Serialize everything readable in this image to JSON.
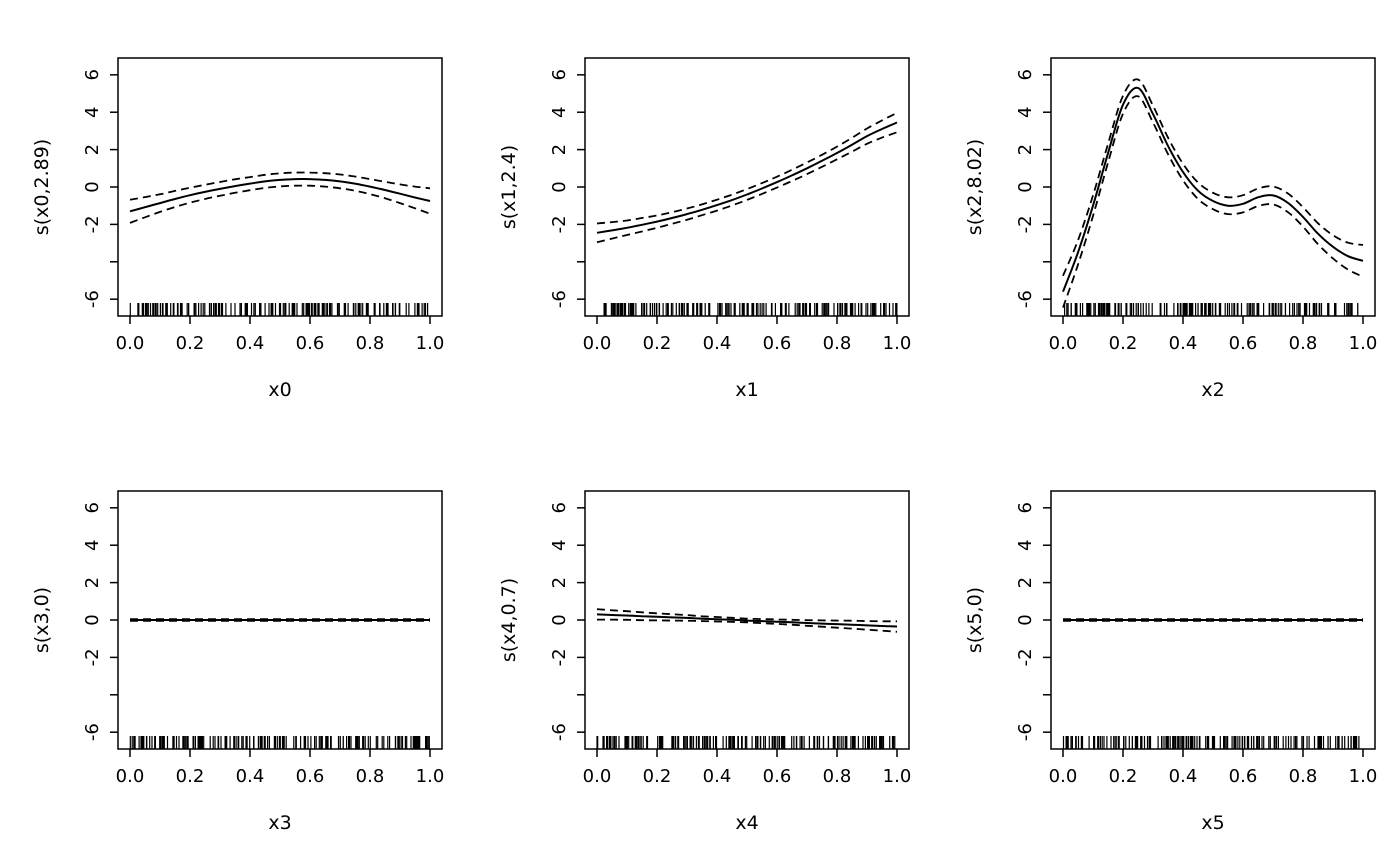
{
  "figure": {
    "description": "GAM smooth term plots, 2x3 grid (mgcv plot.gam style)",
    "background": "#ffffff",
    "line_color": "#000000"
  },
  "chart_data": [
    {
      "type": "line",
      "ylabel": "s(x0,2.89)",
      "xlabel": "x0",
      "xlim": [
        0,
        1
      ],
      "ylim": [
        -6.9,
        6.9
      ],
      "x_ticks": [
        0.0,
        0.2,
        0.4,
        0.6,
        0.8,
        1.0
      ],
      "x_tick_labels": [
        "0.0",
        "0.2",
        "0.4",
        "0.6",
        "0.8",
        "1.0"
      ],
      "y_ticks": [
        -6,
        -4,
        -2,
        0,
        2,
        4,
        6
      ],
      "y_tick_labels": [
        "-6",
        "",
        "-2",
        "0",
        "2",
        "4",
        "6"
      ],
      "x": [
        0,
        0.05,
        0.1,
        0.15,
        0.2,
        0.25,
        0.3,
        0.35,
        0.4,
        0.45,
        0.5,
        0.55,
        0.6,
        0.65,
        0.7,
        0.75,
        0.8,
        0.85,
        0.9,
        0.95,
        1
      ],
      "fit": [
        -1.3,
        -1.08,
        -0.86,
        -0.64,
        -0.44,
        -0.26,
        -0.1,
        0.05,
        0.18,
        0.3,
        0.38,
        0.42,
        0.42,
        0.38,
        0.3,
        0.18,
        0.02,
        -0.16,
        -0.36,
        -0.56,
        -0.75
      ],
      "se": [
        0.62,
        0.54,
        0.47,
        0.43,
        0.4,
        0.38,
        0.37,
        0.36,
        0.35,
        0.35,
        0.35,
        0.35,
        0.35,
        0.36,
        0.37,
        0.38,
        0.4,
        0.44,
        0.5,
        0.58,
        0.68
      ],
      "rug_count": 170,
      "rug_seed": 101
    },
    {
      "type": "line",
      "ylabel": "s(x1,2.4)",
      "xlabel": "x1",
      "xlim": [
        0,
        1
      ],
      "ylim": [
        -6.9,
        6.9
      ],
      "x_ticks": [
        0.0,
        0.2,
        0.4,
        0.6,
        0.8,
        1.0
      ],
      "x_tick_labels": [
        "0.0",
        "0.2",
        "0.4",
        "0.6",
        "0.8",
        "1.0"
      ],
      "y_ticks": [
        -6,
        -4,
        -2,
        0,
        2,
        4,
        6
      ],
      "y_tick_labels": [
        "-6",
        "",
        "-2",
        "0",
        "2",
        "4",
        "6"
      ],
      "x": [
        0,
        0.05,
        0.1,
        0.15,
        0.2,
        0.25,
        0.3,
        0.35,
        0.4,
        0.45,
        0.5,
        0.55,
        0.6,
        0.65,
        0.7,
        0.75,
        0.8,
        0.85,
        0.9,
        0.95,
        1
      ],
      "fit": [
        -2.45,
        -2.32,
        -2.18,
        -2.02,
        -1.85,
        -1.66,
        -1.45,
        -1.22,
        -0.97,
        -0.7,
        -0.4,
        -0.08,
        0.26,
        0.62,
        1.0,
        1.4,
        1.82,
        2.26,
        2.72,
        3.1,
        3.45
      ],
      "se": [
        0.5,
        0.44,
        0.39,
        0.36,
        0.33,
        0.31,
        0.3,
        0.29,
        0.29,
        0.29,
        0.29,
        0.29,
        0.29,
        0.3,
        0.31,
        0.32,
        0.34,
        0.37,
        0.41,
        0.46,
        0.52
      ],
      "rug_count": 170,
      "rug_seed": 102
    },
    {
      "type": "line",
      "ylabel": "s(x2,8.02)",
      "xlabel": "x2",
      "xlim": [
        0,
        1
      ],
      "ylim": [
        -6.9,
        6.9
      ],
      "x_ticks": [
        0.0,
        0.2,
        0.4,
        0.6,
        0.8,
        1.0
      ],
      "x_tick_labels": [
        "0.0",
        "0.2",
        "0.4",
        "0.6",
        "0.8",
        "1.0"
      ],
      "y_ticks": [
        -6,
        -4,
        -2,
        0,
        2,
        4,
        6
      ],
      "y_tick_labels": [
        "-6",
        "",
        "-2",
        "0",
        "2",
        "4",
        "6"
      ],
      "x": [
        0,
        0.05,
        0.1,
        0.15,
        0.2,
        0.25,
        0.3,
        0.35,
        0.4,
        0.45,
        0.5,
        0.55,
        0.6,
        0.65,
        0.7,
        0.75,
        0.8,
        0.85,
        0.9,
        0.95,
        1
      ],
      "fit": [
        -5.6,
        -3.5,
        -1.0,
        1.8,
        4.4,
        5.3,
        3.9,
        2.2,
        0.8,
        -0.2,
        -0.75,
        -1.0,
        -0.9,
        -0.55,
        -0.45,
        -0.85,
        -1.6,
        -2.5,
        -3.2,
        -3.7,
        -3.95
      ],
      "se": [
        0.85,
        0.65,
        0.55,
        0.5,
        0.48,
        0.45,
        0.45,
        0.44,
        0.44,
        0.44,
        0.44,
        0.45,
        0.46,
        0.47,
        0.48,
        0.5,
        0.52,
        0.56,
        0.62,
        0.72,
        0.85
      ],
      "rug_count": 170,
      "rug_seed": 103
    },
    {
      "type": "line",
      "ylabel": "s(x3,0)",
      "xlabel": "x3",
      "xlim": [
        0,
        1
      ],
      "ylim": [
        -6.9,
        6.9
      ],
      "x_ticks": [
        0.0,
        0.2,
        0.4,
        0.6,
        0.8,
        1.0
      ],
      "x_tick_labels": [
        "0.0",
        "0.2",
        "0.4",
        "0.6",
        "0.8",
        "1.0"
      ],
      "y_ticks": [
        -6,
        -4,
        -2,
        0,
        2,
        4,
        6
      ],
      "y_tick_labels": [
        "-6",
        "",
        "-2",
        "0",
        "2",
        "4",
        "6"
      ],
      "x": [
        0,
        0.05,
        0.1,
        0.15,
        0.2,
        0.25,
        0.3,
        0.35,
        0.4,
        0.45,
        0.5,
        0.55,
        0.6,
        0.65,
        0.7,
        0.75,
        0.8,
        0.85,
        0.9,
        0.95,
        1
      ],
      "fit": [
        0,
        0,
        0,
        0,
        0,
        0,
        0,
        0,
        0,
        0,
        0,
        0,
        0,
        0,
        0,
        0,
        0,
        0,
        0,
        0,
        0
      ],
      "se": [
        0.05,
        0.05,
        0.05,
        0.05,
        0.05,
        0.05,
        0.05,
        0.05,
        0.05,
        0.05,
        0.05,
        0.05,
        0.05,
        0.05,
        0.05,
        0.05,
        0.05,
        0.05,
        0.05,
        0.05,
        0.05
      ],
      "rug_count": 170,
      "rug_seed": 104
    },
    {
      "type": "line",
      "ylabel": "s(x4,0.7)",
      "xlabel": "x4",
      "xlim": [
        0,
        1
      ],
      "ylim": [
        -6.9,
        6.9
      ],
      "x_ticks": [
        0.0,
        0.2,
        0.4,
        0.6,
        0.8,
        1.0
      ],
      "x_tick_labels": [
        "0.0",
        "0.2",
        "0.4",
        "0.6",
        "0.8",
        "1.0"
      ],
      "y_ticks": [
        -6,
        -4,
        -2,
        0,
        2,
        4,
        6
      ],
      "y_tick_labels": [
        "-6",
        "",
        "-2",
        "0",
        "2",
        "4",
        "6"
      ],
      "x": [
        0,
        0.05,
        0.1,
        0.15,
        0.2,
        0.25,
        0.3,
        0.35,
        0.4,
        0.45,
        0.5,
        0.55,
        0.6,
        0.65,
        0.7,
        0.75,
        0.8,
        0.85,
        0.9,
        0.95,
        1
      ],
      "fit": [
        0.3,
        0.27,
        0.24,
        0.2,
        0.17,
        0.14,
        0.11,
        0.07,
        0.04,
        0.01,
        -0.03,
        -0.06,
        -0.09,
        -0.12,
        -0.16,
        -0.19,
        -0.22,
        -0.25,
        -0.29,
        -0.32,
        -0.35
      ],
      "se": [
        0.28,
        0.25,
        0.23,
        0.21,
        0.19,
        0.17,
        0.15,
        0.13,
        0.12,
        0.11,
        0.1,
        0.11,
        0.12,
        0.13,
        0.15,
        0.17,
        0.19,
        0.21,
        0.23,
        0.25,
        0.28
      ],
      "rug_count": 170,
      "rug_seed": 105
    },
    {
      "type": "line",
      "ylabel": "s(x5,0)",
      "xlabel": "x5",
      "xlim": [
        0,
        1
      ],
      "ylim": [
        -6.9,
        6.9
      ],
      "x_ticks": [
        0.0,
        0.2,
        0.4,
        0.6,
        0.8,
        1.0
      ],
      "x_tick_labels": [
        "0.0",
        "0.2",
        "0.4",
        "0.6",
        "0.8",
        "1.0"
      ],
      "y_ticks": [
        -6,
        -4,
        -2,
        0,
        2,
        4,
        6
      ],
      "y_tick_labels": [
        "-6",
        "",
        "-2",
        "0",
        "2",
        "4",
        "6"
      ],
      "x": [
        0,
        0.05,
        0.1,
        0.15,
        0.2,
        0.25,
        0.3,
        0.35,
        0.4,
        0.45,
        0.5,
        0.55,
        0.6,
        0.65,
        0.7,
        0.75,
        0.8,
        0.85,
        0.9,
        0.95,
        1
      ],
      "fit": [
        0,
        0,
        0,
        0,
        0,
        0,
        0,
        0,
        0,
        0,
        0,
        0,
        0,
        0,
        0,
        0,
        0,
        0,
        0,
        0,
        0
      ],
      "se": [
        0.05,
        0.05,
        0.05,
        0.05,
        0.05,
        0.05,
        0.05,
        0.05,
        0.05,
        0.05,
        0.05,
        0.05,
        0.05,
        0.05,
        0.05,
        0.05,
        0.05,
        0.05,
        0.05,
        0.05,
        0.05
      ],
      "rug_count": 170,
      "rug_seed": 106
    }
  ]
}
